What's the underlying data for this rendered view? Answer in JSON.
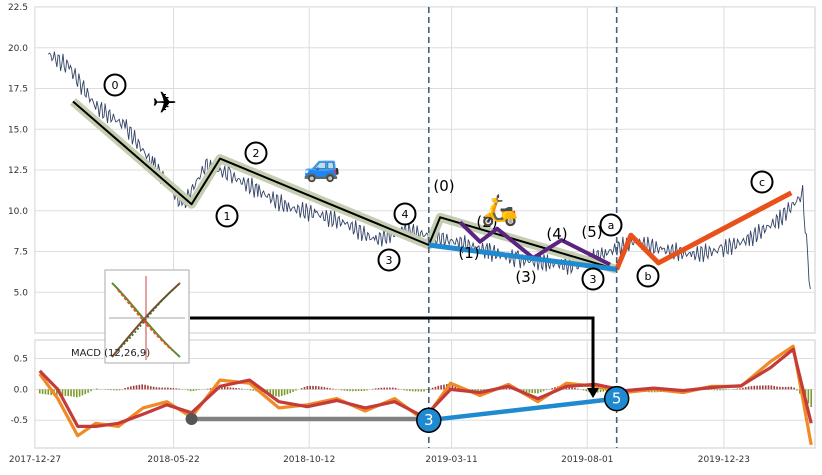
{
  "chart_data": [
    {
      "type": "line",
      "panel": "price",
      "ylim": [
        2.5,
        22.5
      ],
      "yticks": [
        "5.0",
        "7.5",
        "10.0",
        "12.5",
        "15.0",
        "17.5",
        "20.0",
        "22.5"
      ],
      "yticks_values": [
        5.0,
        7.5,
        10.0,
        12.5,
        15.0,
        17.5,
        20.0,
        22.5
      ],
      "grid": true,
      "series": [
        {
          "role": "price",
          "color": "#334466",
          "x": [
            "2018-01-10",
            "2018-02-01",
            "2018-03-01",
            "2018-04-01",
            "2018-05-01",
            "2018-06-01",
            "2018-06-25",
            "2018-07-20",
            "2018-08-20",
            "2018-09-20",
            "2018-10-20",
            "2018-11-20",
            "2018-12-20",
            "2019-01-20",
            "2019-02-20",
            "2019-03-20",
            "2019-04-20",
            "2019-05-20",
            "2019-06-20",
            "2019-07-20",
            "2019-08-20",
            "2019-09-20",
            "2019-10-20",
            "2019-11-20",
            "2019-12-20",
            "2020-01-20",
            "2020-02-20",
            "2020-03-15",
            "2020-03-23"
          ],
          "y": [
            19.6,
            18.8,
            16.4,
            15.2,
            12.8,
            10.3,
            12.8,
            12.2,
            11.2,
            10.2,
            9.8,
            9.2,
            8.2,
            8.8,
            8.4,
            8.0,
            7.5,
            7.0,
            6.8,
            6.6,
            7.4,
            8.1,
            7.6,
            7.3,
            7.6,
            8.3,
            9.5,
            11.0,
            5.2
          ]
        }
      ],
      "waves": [
        {
          "name": "primary",
          "color": "#000000",
          "halo": "#c5ceb0",
          "x": [
            "2018-02-05",
            "2018-06-10",
            "2018-07-10",
            "2019-02-15",
            "2019-02-27",
            "2019-09-01"
          ],
          "y": [
            16.7,
            10.4,
            13.2,
            7.9,
            9.6,
            6.4
          ]
        },
        {
          "name": "purple",
          "color": "#5a2480",
          "x": [
            "2019-03-20",
            "2019-04-10",
            "2019-04-28",
            "2019-06-05",
            "2019-07-05",
            "2019-08-25"
          ],
          "y": [
            9.3,
            8.1,
            8.9,
            7.1,
            8.2,
            6.7
          ]
        },
        {
          "name": "correction",
          "color": "#e8521a",
          "x": [
            "2019-09-01",
            "2019-09-16",
            "2019-10-15",
            "2020-03-03"
          ],
          "y": [
            6.4,
            8.5,
            6.8,
            11.1
          ]
        },
        {
          "name": "trend",
          "color": "#1f8ad0",
          "x": [
            "2019-02-15",
            "2019-09-01"
          ],
          "y": [
            7.9,
            6.4
          ]
        }
      ],
      "wave_labels": [
        "0",
        "1",
        "2",
        "3",
        "4",
        "3",
        "(0)",
        "(1)",
        "(2)",
        "(3)",
        "(4)",
        "(5)",
        "a",
        "b",
        "c"
      ],
      "vlines": [
        "2019-02-15",
        "2019-09-01"
      ]
    },
    {
      "type": "line",
      "panel": "macd",
      "ylim": [
        -0.95,
        0.8
      ],
      "yticks": [
        "-0.5",
        "0.0",
        "0.5"
      ],
      "yticks_values": [
        -0.5,
        0.0,
        0.5
      ],
      "label": "MACD (12,26,9)",
      "xticks": [
        "2017-12-27",
        "2018-05-22",
        "2018-10-12",
        "2019-03-11",
        "2019-08-01",
        "2019-12-23"
      ],
      "series": [
        {
          "role": "macd",
          "color": "#f08a24",
          "x": [
            "2018-01-01",
            "2018-01-20",
            "2018-02-10",
            "2018-03-01",
            "2018-03-25",
            "2018-04-20",
            "2018-05-15",
            "2018-06-10",
            "2018-07-10",
            "2018-08-10",
            "2018-09-10",
            "2018-10-10",
            "2018-11-10",
            "2018-12-10",
            "2019-01-10",
            "2019-02-10",
            "2019-03-10",
            "2019-04-10",
            "2019-05-10",
            "2019-06-10",
            "2019-07-10",
            "2019-08-10",
            "2019-09-10",
            "2019-10-10",
            "2019-11-10",
            "2019-12-10",
            "2020-01-10",
            "2020-02-10",
            "2020-03-05",
            "2020-03-24"
          ],
          "y": [
            0.25,
            -0.15,
            -0.75,
            -0.55,
            -0.6,
            -0.3,
            -0.2,
            -0.45,
            0.15,
            0.1,
            -0.3,
            -0.25,
            -0.15,
            -0.35,
            -0.15,
            -0.5,
            0.1,
            -0.1,
            0.08,
            -0.2,
            0.1,
            0.05,
            -0.05,
            0.0,
            -0.05,
            0.05,
            0.05,
            0.45,
            0.7,
            -0.9
          ]
        },
        {
          "role": "signal",
          "color": "#c43c39",
          "x": [
            "2018-01-01",
            "2018-01-20",
            "2018-02-10",
            "2018-03-01",
            "2018-03-25",
            "2018-04-20",
            "2018-05-15",
            "2018-06-10",
            "2018-07-10",
            "2018-08-10",
            "2018-09-10",
            "2018-10-10",
            "2018-11-10",
            "2018-12-10",
            "2019-01-10",
            "2019-02-10",
            "2019-03-10",
            "2019-04-10",
            "2019-05-10",
            "2019-06-10",
            "2019-07-10",
            "2019-08-10",
            "2019-09-10",
            "2019-10-10",
            "2019-11-10",
            "2019-12-10",
            "2020-01-10",
            "2020-02-10",
            "2020-03-05",
            "2020-03-24"
          ],
          "y": [
            0.3,
            0.0,
            -0.6,
            -0.6,
            -0.55,
            -0.4,
            -0.25,
            -0.38,
            0.05,
            0.15,
            -0.2,
            -0.28,
            -0.18,
            -0.3,
            -0.2,
            -0.45,
            0.0,
            -0.05,
            0.05,
            -0.15,
            0.05,
            0.08,
            -0.02,
            0.02,
            -0.02,
            0.03,
            0.06,
            0.35,
            0.65,
            -0.55
          ]
        }
      ],
      "connectors": [
        {
          "color": "#808080",
          "x": [
            "2018-06-10",
            "2019-02-15"
          ],
          "y": [
            -0.48,
            -0.48
          ]
        },
        {
          "color": "#1f8ad0",
          "x": [
            "2019-02-15",
            "2019-09-01"
          ],
          "y": [
            -0.5,
            -0.15
          ]
        }
      ],
      "markers": [
        {
          "label": "3",
          "x": "2019-02-15",
          "y": -0.5
        },
        {
          "label": "5",
          "x": "2019-09-01",
          "y": -0.15
        }
      ],
      "vlines": [
        "2019-02-15",
        "2019-09-01"
      ]
    }
  ]
}
